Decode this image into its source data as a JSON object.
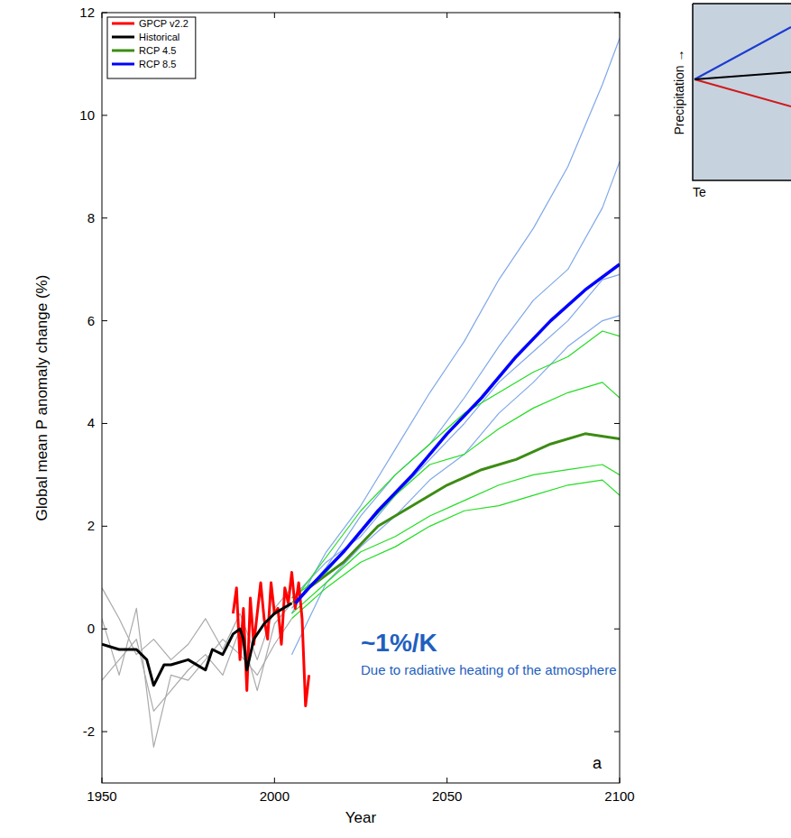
{
  "chart_data": {
    "type": "line",
    "x_label": "Year",
    "y_label": "Global mean P anomaly change (%)",
    "xlim": [
      1950,
      2100
    ],
    "xticks": [
      1950,
      2000,
      2050,
      2100
    ],
    "ylim": [
      -3,
      12
    ],
    "yticks": [
      -2,
      0,
      2,
      4,
      6,
      8,
      10,
      12
    ],
    "grid": false,
    "legend": "upper left",
    "annotations": [
      {
        "text": "~1%/K"
      },
      {
        "text": "Due to radiative heating of the atmosphere"
      },
      {
        "text": "a"
      }
    ],
    "series": [
      {
        "color": "#aaaaaa",
        "x": [
          1950,
          1955,
          1960,
          1965,
          1970,
          1975,
          1980,
          1985,
          1990,
          1995,
          2000,
          2005
        ],
        "values": [
          0.8,
          0.2,
          -0.5,
          -0.2,
          -0.6,
          -0.3,
          0.2,
          -0.4,
          0.3,
          -0.6,
          0.4,
          0.8
        ]
      },
      {
        "color": "#aaaaaa",
        "x": [
          1950,
          1955,
          1960,
          1965,
          1970,
          1975,
          1980,
          1985,
          1990,
          1995,
          2000,
          2005
        ],
        "values": [
          -1.0,
          -0.6,
          -0.2,
          -1.6,
          -1.2,
          -0.8,
          -0.5,
          -0.9,
          0.0,
          -1.2,
          0.1,
          0.5
        ]
      },
      {
        "color": "#aaaaaa",
        "x": [
          1950,
          1955,
          1960,
          1965,
          1970,
          1975,
          1980,
          1985,
          1990,
          1995,
          2000,
          2005
        ],
        "values": [
          0.2,
          -0.9,
          0.4,
          -2.3,
          -0.9,
          -1.0,
          -0.6,
          -0.2,
          -0.5,
          -0.9,
          -0.3,
          0.2
        ]
      },
      {
        "color": "#7fa8e8",
        "x": [
          2005,
          2015,
          2025,
          2035,
          2045,
          2055,
          2065,
          2075,
          2085,
          2095,
          2100
        ],
        "values": [
          0.3,
          1.5,
          2.4,
          3.5,
          4.6,
          5.6,
          6.8,
          7.8,
          9.0,
          10.6,
          11.5
        ]
      },
      {
        "color": "#7fa8e8",
        "x": [
          2005,
          2015,
          2025,
          2035,
          2045,
          2055,
          2065,
          2075,
          2085,
          2095,
          2100
        ],
        "values": [
          0.6,
          1.3,
          1.8,
          2.6,
          3.3,
          4.0,
          4.8,
          5.4,
          6.0,
          6.8,
          6.9
        ]
      },
      {
        "color": "#7fa8e8",
        "x": [
          2005,
          2015,
          2025,
          2035,
          2045,
          2055,
          2065,
          2075,
          2085,
          2095,
          2100
        ],
        "values": [
          0.4,
          1.2,
          2.2,
          3.0,
          3.6,
          4.5,
          5.5,
          6.4,
          7.0,
          8.2,
          9.1
        ]
      },
      {
        "color": "#7fa8e8",
        "x": [
          2005,
          2015,
          2025,
          2035,
          2045,
          2055,
          2065,
          2075,
          2085,
          2095,
          2100
        ],
        "values": [
          -0.5,
          0.9,
          1.6,
          2.2,
          2.9,
          3.4,
          4.2,
          4.8,
          5.5,
          6.0,
          6.1
        ]
      },
      {
        "color": "#22dd22",
        "x": [
          2005,
          2015,
          2025,
          2035,
          2045,
          2055,
          2065,
          2075,
          2085,
          2095,
          2100
        ],
        "values": [
          0.5,
          1.4,
          2.3,
          3.0,
          3.6,
          4.2,
          4.6,
          5.0,
          5.3,
          5.8,
          5.7
        ]
      },
      {
        "color": "#22dd22",
        "x": [
          2005,
          2015,
          2025,
          2035,
          2045,
          2055,
          2065,
          2075,
          2085,
          2095,
          2100
        ],
        "values": [
          0.3,
          0.9,
          1.5,
          1.8,
          2.2,
          2.5,
          2.8,
          3.0,
          3.1,
          3.2,
          3.0
        ]
      },
      {
        "color": "#22dd22",
        "x": [
          2005,
          2015,
          2025,
          2035,
          2045,
          2055,
          2065,
          2075,
          2085,
          2095,
          2100
        ],
        "values": [
          0.6,
          1.1,
          1.9,
          2.6,
          3.2,
          3.4,
          3.9,
          4.3,
          4.6,
          4.8,
          4.5
        ]
      },
      {
        "color": "#22dd22",
        "x": [
          2005,
          2015,
          2025,
          2035,
          2045,
          2055,
          2065,
          2075,
          2085,
          2095,
          2100
        ],
        "values": [
          0.2,
          0.8,
          1.3,
          1.6,
          2.0,
          2.3,
          2.4,
          2.6,
          2.8,
          2.9,
          2.6
        ]
      },
      {
        "name": "GPCP v2.2",
        "color": "#ff0000",
        "x": [
          1988,
          1989,
          1990,
          1991,
          1992,
          1993,
          1994,
          1995,
          1996,
          1997,
          1998,
          1999,
          2000,
          2001,
          2002,
          2003,
          2004,
          2005,
          2006,
          2007,
          2008,
          2009,
          2010
        ],
        "values": [
          0.3,
          0.8,
          -0.6,
          0.4,
          -1.2,
          0.6,
          -0.3,
          0.3,
          0.9,
          0.2,
          -0.2,
          0.9,
          0.3,
          0.4,
          -0.3,
          0.8,
          0.5,
          1.1,
          0.4,
          0.9,
          0.2,
          -1.5,
          -0.9
        ]
      },
      {
        "name": "Historical",
        "color": "#000000",
        "x": [
          1950,
          1955,
          1960,
          1963,
          1965,
          1968,
          1970,
          1975,
          1980,
          1982,
          1985,
          1988,
          1990,
          1991,
          1992,
          1994,
          1997,
          2000,
          2005
        ],
        "values": [
          -0.3,
          -0.4,
          -0.4,
          -0.6,
          -1.1,
          -0.7,
          -0.7,
          -0.6,
          -0.8,
          -0.4,
          -0.5,
          -0.1,
          0.0,
          -0.2,
          -0.8,
          -0.2,
          0.1,
          0.3,
          0.5
        ]
      },
      {
        "name": "RCP 4.5",
        "color": "#3c8c14",
        "x": [
          2006,
          2010,
          2020,
          2030,
          2040,
          2050,
          2060,
          2070,
          2080,
          2090,
          2100
        ],
        "values": [
          0.5,
          0.8,
          1.3,
          2.0,
          2.4,
          2.8,
          3.1,
          3.3,
          3.6,
          3.8,
          3.7
        ]
      },
      {
        "name": "RCP 8.5",
        "color": "#0000ff",
        "x": [
          2006,
          2010,
          2020,
          2030,
          2040,
          2050,
          2060,
          2070,
          2080,
          2090,
          2100
        ],
        "values": [
          0.5,
          0.8,
          1.5,
          2.3,
          3.0,
          3.8,
          4.5,
          5.3,
          6.0,
          6.6,
          7.1
        ]
      }
    ]
  },
  "inset": {
    "y_label": "Precipitation →",
    "x_label": "Te"
  }
}
